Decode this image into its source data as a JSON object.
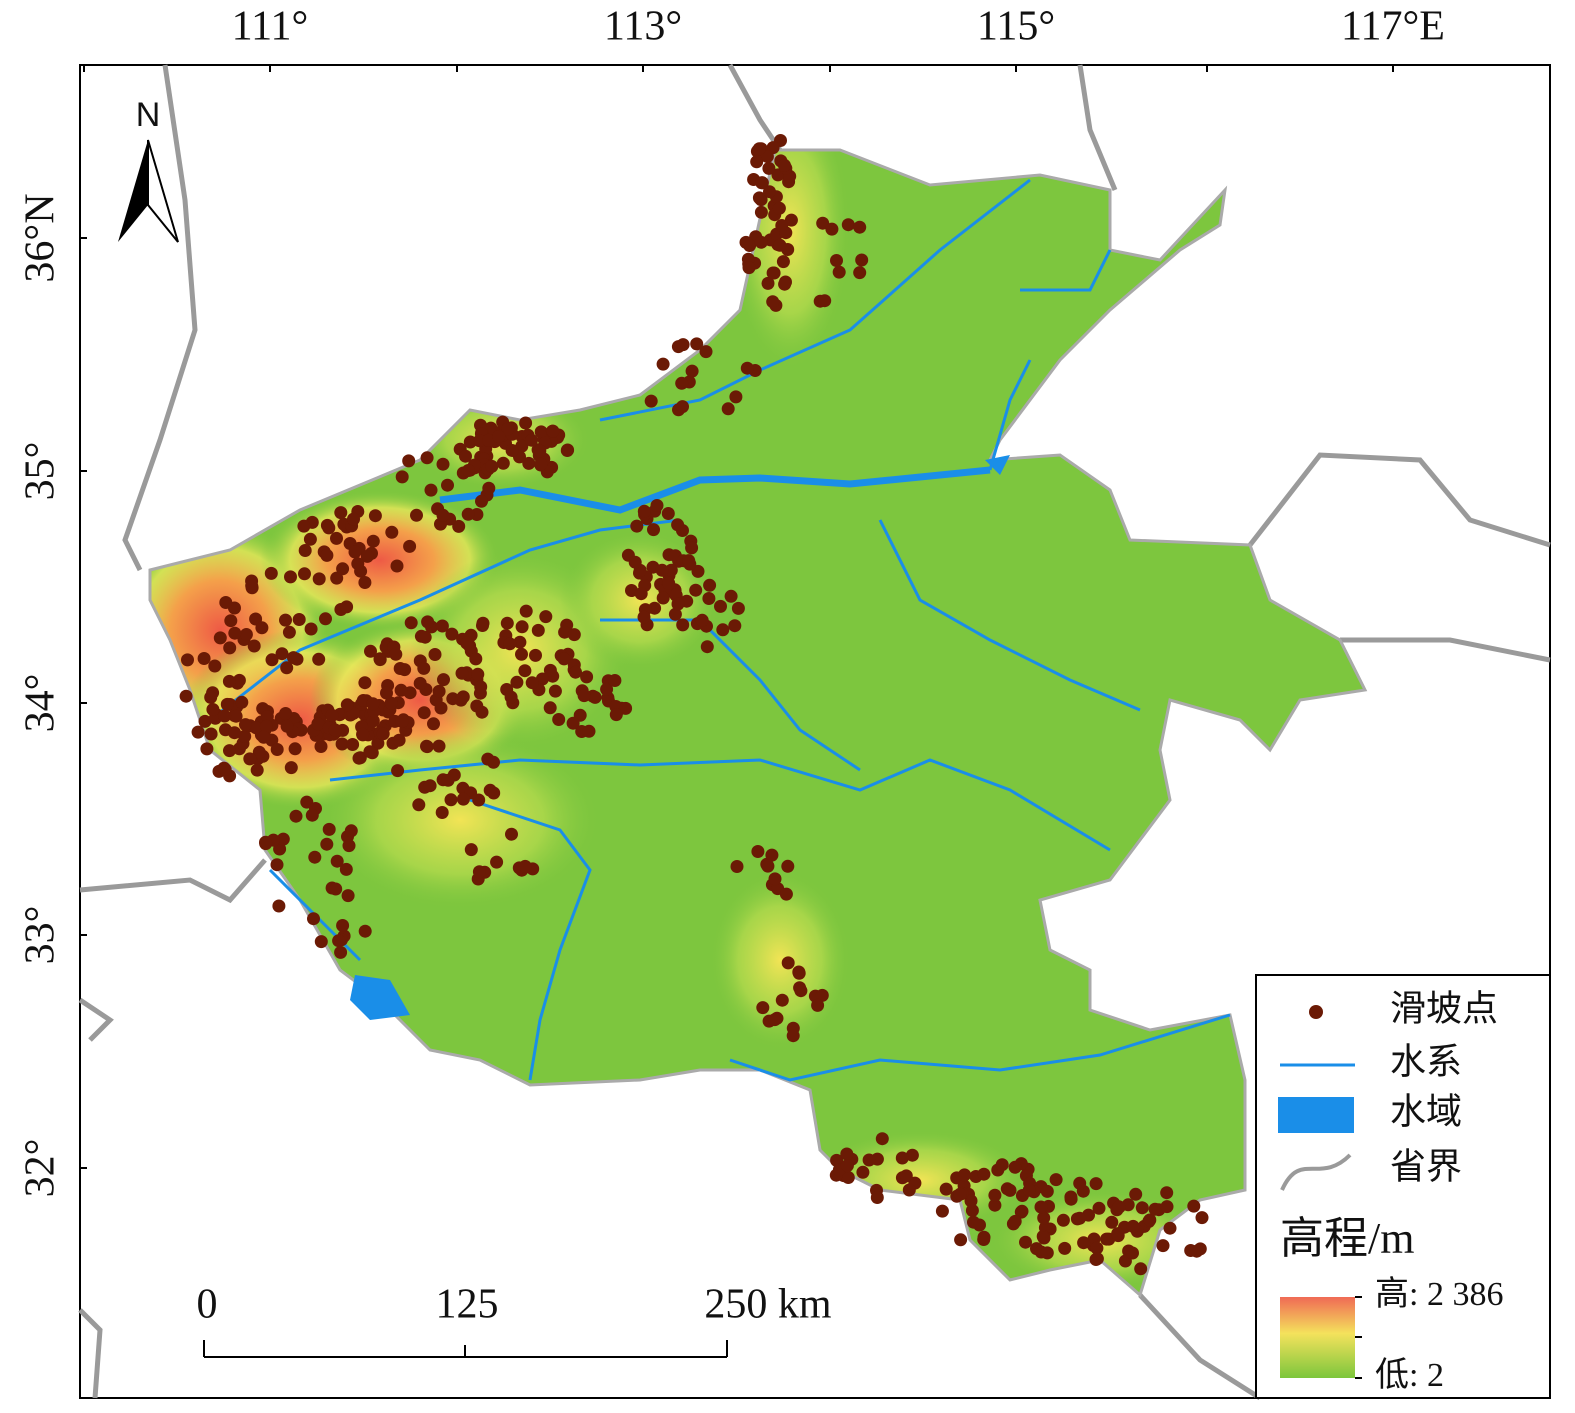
{
  "map": {
    "lon_labels": [
      "111°",
      "113°",
      "115°",
      "117°E"
    ],
    "lat_labels": [
      "36°N",
      "35°",
      "34°",
      "33°",
      "32°"
    ],
    "north": "N",
    "scale_labels": [
      "0",
      "125",
      "250 km"
    ],
    "legend": {
      "items": [
        "滑坡点",
        "水系",
        "水域",
        "省界"
      ],
      "title": "高程/m",
      "high": "高: 2 386",
      "low": "低: 2"
    }
  }
}
